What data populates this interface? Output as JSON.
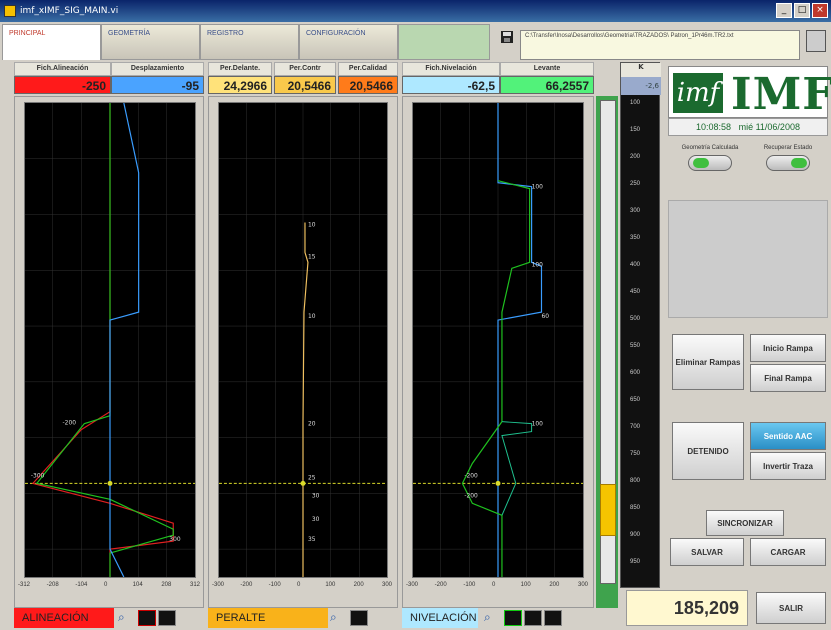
{
  "window": {
    "title": "imf_xIMF_SIG_MAIN.vi",
    "min": "_",
    "max": "□",
    "close": "×"
  },
  "tabs": [
    {
      "label": "PRINCIPAL"
    },
    {
      "label": "GEOMETRÍA"
    },
    {
      "label": "REGISTRO"
    },
    {
      "label": "CONFIGURACIÓN"
    },
    {
      "label": ""
    }
  ],
  "path": "C:\\Transfer\\Inosa\\Desarrollos\\Geometria\\TRAZADOS\\ Patron_1Pr46m.TR2.txt",
  "headers": {
    "fich_alineacion": "Fich.Alineación",
    "desplazamiento": "Desplazamiento",
    "per_delante": "Per.Delante.",
    "per_contr": "Per.Contr",
    "per_calidad": "Per.Calidad",
    "fich_nivelacion": "Fich.Nivelación",
    "levante": "Levante",
    "k": "K"
  },
  "values": {
    "fich_alineacion": "-250",
    "desplazamiento": "-95",
    "per_delante": "24,2966",
    "per_contr": "20,5466",
    "per_calidad": "20,5466",
    "fich_nivelacion": "-62,5",
    "levante": "66,2557",
    "k": "-2,6"
  },
  "colors": {
    "alineacion_bg": "#ff1a1a",
    "desplazamiento_bg": "#4aa3ff",
    "per_delante_bg": "#ffe27a",
    "per_contr_bg": "#f9c94b",
    "per_calidad_bg": "#ff7b1a",
    "fich_nivelacion_bg": "#aee8ff",
    "levante_bg": "#52f27a"
  },
  "plots": {
    "alineacion": {
      "ticks": [
        "-312",
        "-208",
        "-104",
        "0",
        "104",
        "208",
        "312"
      ],
      "annotations": [
        "-200",
        "-300",
        "300"
      ]
    },
    "peralte": {
      "ticks": [
        "-300",
        "-200",
        "-100",
        "0",
        "100",
        "200",
        "300"
      ],
      "annotations": [
        "10",
        "15",
        "10",
        "20",
        "25",
        "30",
        "30",
        "35"
      ]
    },
    "nivelacion": {
      "ticks": [
        "-300",
        "-200",
        "-100",
        "0",
        "100",
        "200",
        "300"
      ],
      "annotations": [
        "100",
        "100",
        "60",
        "100",
        "-200",
        "-200"
      ]
    }
  },
  "ruler_ticks": [
    "100",
    "150",
    "200",
    "250",
    "300",
    "350",
    "400",
    "450",
    "500",
    "550",
    "600",
    "650",
    "700",
    "750",
    "800",
    "850",
    "900",
    "950"
  ],
  "logo": {
    "mark": "imf",
    "brand": "IMF"
  },
  "clock": {
    "time": "10:08:58",
    "date": "mié 11/06/2008"
  },
  "switches": [
    {
      "label": "Geometría Calculada"
    },
    {
      "label": "Recuperar Estado"
    }
  ],
  "buttons": {
    "eliminar_rampas": "Eliminar Rampas",
    "inicio_rampa": "Inicio Rampa",
    "final_rampa": "Final Rampa",
    "detenido": "DETENIDO",
    "sentido_aac": "Sentido AAC",
    "invertir_traza": "Invertir Traza",
    "sincronizar": "SINCRONIZAR",
    "salvar": "SALVAR",
    "cargar": "CARGAR",
    "salir": "SALIR"
  },
  "bottom": {
    "alineacion": "ALINEACIÓN",
    "peralte": "PERALTE",
    "nivelacion": "NIVELACIÓN"
  },
  "km_value": "185,209"
}
